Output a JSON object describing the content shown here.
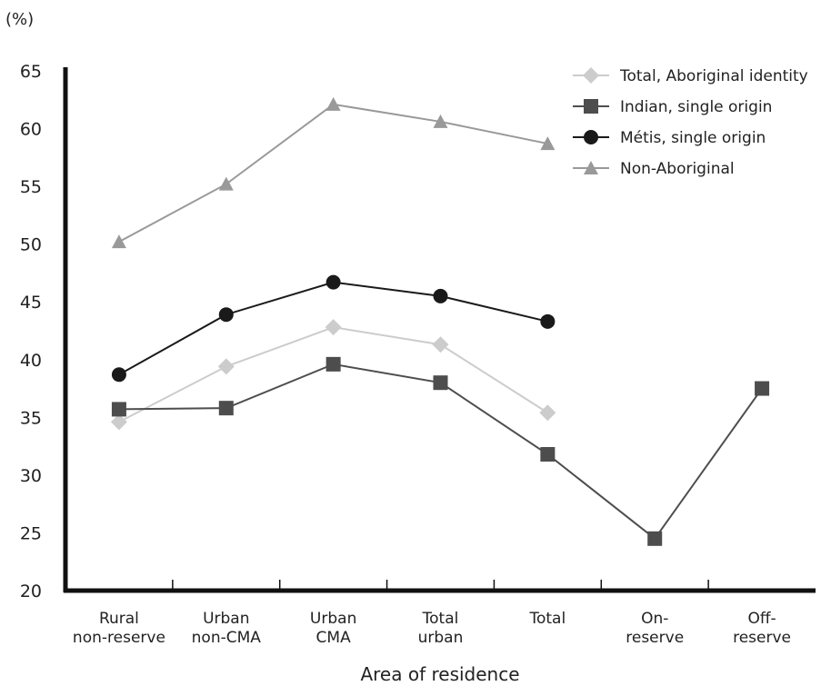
{
  "chart_data": {
    "type": "line",
    "unit_label": "(%)",
    "xlabel": "Area of residence",
    "ylabel": "",
    "ylim": [
      20,
      65
    ],
    "yticks": [
      20,
      25,
      30,
      35,
      40,
      45,
      50,
      55,
      60,
      65
    ],
    "categories": [
      [
        "Rural",
        "non-reserve"
      ],
      [
        "Urban",
        "non-CMA"
      ],
      [
        "Urban",
        "CMA"
      ],
      [
        "Total",
        "urban"
      ],
      [
        "Total"
      ],
      [
        "On-",
        "reserve"
      ],
      [
        "Off-",
        "reserve"
      ]
    ],
    "legend_position": "top-right",
    "grid": false,
    "series": [
      {
        "name": "Total, Aboriginal identity",
        "marker": "diamond",
        "color": "#cccccc",
        "values": [
          34.6,
          39.4,
          42.8,
          41.3,
          35.4,
          null,
          null
        ]
      },
      {
        "name": "Indian, single origin",
        "marker": "square",
        "color": "#4d4d4d",
        "values": [
          35.7,
          35.8,
          39.6,
          38.0,
          31.8,
          24.5,
          37.5
        ]
      },
      {
        "name": "Métis, single origin",
        "marker": "circle",
        "color": "#1a1a1a",
        "values": [
          38.7,
          43.9,
          46.7,
          45.5,
          43.3,
          null,
          null
        ]
      },
      {
        "name": "Non-Aboriginal",
        "marker": "triangle",
        "color": "#999999",
        "values": [
          50.2,
          55.2,
          62.1,
          60.6,
          58.7,
          null,
          null
        ]
      }
    ]
  }
}
